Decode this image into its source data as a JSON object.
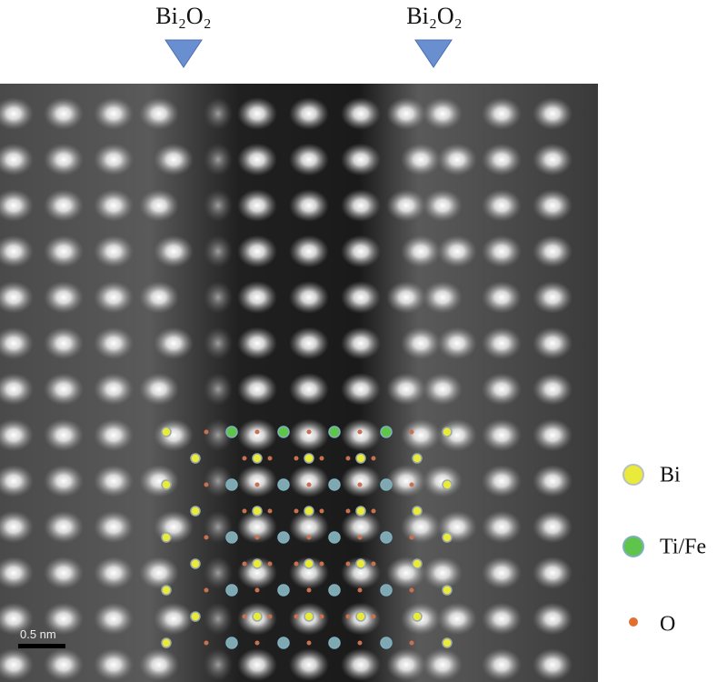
{
  "top_labels": [
    "Bi₂O₂",
    "Bi₂O₂"
  ],
  "legend": [
    "Bi",
    "Ti/Fe",
    "O"
  ],
  "scale_bar": "0.5 nm"
}
